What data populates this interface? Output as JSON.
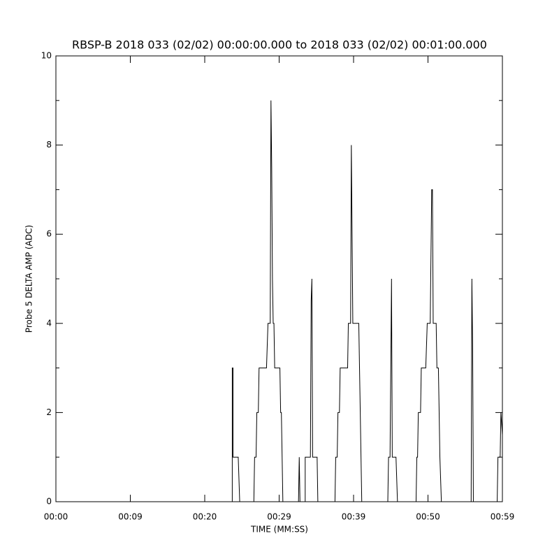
{
  "chart_data": {
    "type": "line",
    "title": "RBSP-B 2018 033 (02/02) 00:00:00.000 to 2018 033 (02/02) 00:01:00.000",
    "xlabel": "TIME (MM:SS)",
    "ylabel": "Probe 5 DELTA AMP (ADC)",
    "xlim": [
      0,
      60
    ],
    "xticks": [
      {
        "value": 0,
        "label": "00:00"
      },
      {
        "value": 10,
        "label": "00:09"
      },
      {
        "value": 20,
        "label": "00:20"
      },
      {
        "value": 30,
        "label": "00:29"
      },
      {
        "value": 40,
        "label": "00:39"
      },
      {
        "value": 50,
        "label": "00:50"
      },
      {
        "value": 60,
        "label": "00:59"
      }
    ],
    "ylim": [
      0,
      10
    ],
    "yticks": [
      0,
      2,
      4,
      6,
      8,
      10
    ],
    "yminorticks": [
      1,
      3,
      5,
      7,
      9
    ],
    "color": "#000000",
    "x": [
      0,
      23.7,
      23.7,
      23.8,
      23.8,
      24.5,
      24.7,
      26.6,
      26.7,
      26.9,
      27.0,
      27.2,
      27.3,
      28.3,
      28.5,
      28.8,
      28.9,
      29.0,
      29.1,
      29.2,
      29.3,
      29.4,
      30.1,
      30.2,
      30.3,
      30.4,
      30.5,
      32.6,
      32.7,
      32.8,
      33.5,
      33.5,
      34.2,
      34.3,
      34.4,
      34.5,
      35.1,
      35.2,
      37.5,
      37.6,
      37.8,
      37.9,
      38.1,
      38.2,
      39.2,
      39.3,
      39.6,
      39.7,
      39.8,
      39.9,
      40.7,
      40.8,
      40.9,
      41.0,
      41.1,
      44.6,
      44.7,
      44.9,
      45.0,
      45.1,
      45.2,
      45.7,
      45.9,
      48.4,
      48.5,
      48.6,
      48.7,
      49.0,
      49.1,
      49.7,
      49.9,
      50.3,
      50.4,
      50.5,
      50.6,
      50.7,
      51.1,
      51.2,
      51.4,
      51.5,
      51.6,
      51.8,
      55.8,
      55.9,
      56.0,
      56.1,
      59.3,
      59.4,
      59.7,
      59.8,
      60.0
    ],
    "values": [
      0,
      0,
      3,
      3,
      1,
      1,
      0,
      0,
      1,
      1,
      2,
      2,
      3,
      3,
      4,
      4,
      9,
      7.5,
      5,
      4,
      4,
      3,
      3,
      2,
      2,
      1,
      0,
      0,
      1,
      0,
      0,
      1,
      1,
      4.5,
      5,
      1,
      1,
      0,
      0,
      1,
      1,
      2,
      2,
      3,
      3,
      4,
      4,
      8,
      6,
      4,
      4,
      3,
      2,
      1,
      0,
      0,
      1,
      1,
      3,
      5,
      1,
      1,
      0,
      0,
      1,
      1,
      2,
      2,
      3,
      3,
      4,
      4,
      5.5,
      7,
      7,
      4,
      4,
      3,
      3,
      2,
      1,
      0,
      0,
      5,
      3.5,
      0,
      0,
      1,
      1,
      2,
      1.5
    ]
  }
}
